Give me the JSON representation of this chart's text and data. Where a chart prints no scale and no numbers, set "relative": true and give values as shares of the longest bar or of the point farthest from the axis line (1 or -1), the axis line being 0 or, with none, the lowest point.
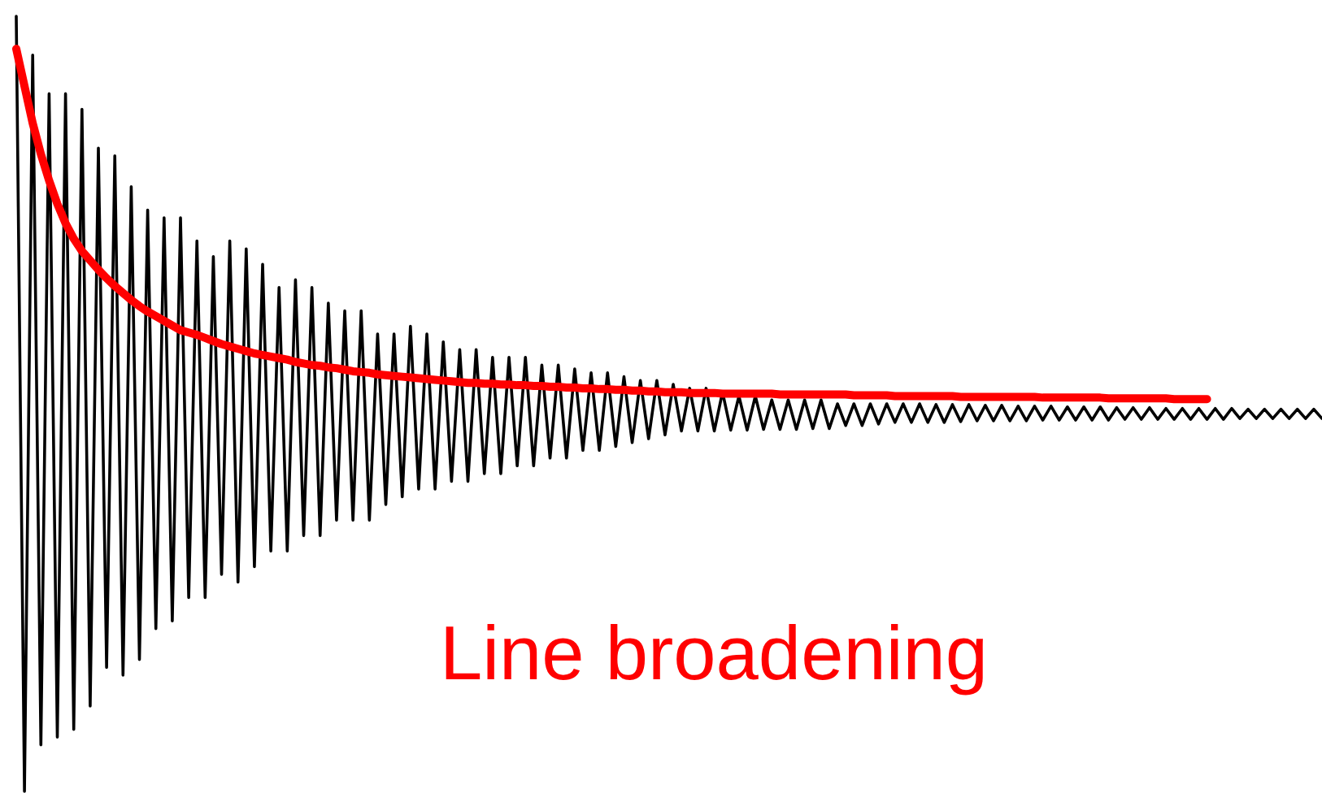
{
  "chart_data": {
    "type": "line",
    "relative": true,
    "categories": [
      null,
      null,
      null,
      null,
      null,
      null,
      null,
      null,
      null,
      null,
      null,
      null,
      null,
      null,
      null,
      null,
      null,
      null,
      null,
      null,
      null,
      null,
      null,
      null,
      null,
      null,
      null,
      null,
      null,
      null,
      null,
      null,
      null,
      null,
      null,
      null,
      null,
      null,
      null,
      null,
      null,
      null,
      null,
      null,
      null,
      null,
      null,
      null,
      null,
      null,
      null,
      null,
      null,
      null,
      null,
      null,
      null,
      null,
      null,
      null,
      null,
      null,
      null,
      null,
      null,
      null,
      null,
      null,
      null,
      null,
      null,
      null,
      null,
      null,
      null,
      null,
      null,
      null,
      null,
      null,
      null,
      null,
      null,
      null,
      null,
      null,
      null,
      null,
      null,
      null,
      null,
      null,
      null,
      null,
      null,
      null,
      null,
      null,
      null,
      null,
      null,
      null,
      null,
      null,
      null,
      null,
      null,
      null,
      null,
      null,
      null,
      null,
      null,
      null,
      null,
      null,
      null,
      null,
      null,
      null,
      null,
      null,
      null,
      null,
      null,
      null,
      null,
      null,
      null,
      null,
      null,
      null,
      null,
      null,
      null,
      null,
      null,
      null,
      null,
      null,
      null,
      null,
      null,
      null,
      null,
      null,
      null,
      null,
      null,
      null,
      null,
      null,
      null,
      null,
      null,
      null,
      null,
      null,
      null,
      null
    ],
    "series": [
      {
        "color": "#000000",
        "values": [
          1,
          0,
          0.95,
          0.06,
          0.9,
          0.07,
          0.9,
          0.08,
          0.88,
          0.11,
          0.83,
          0.16,
          0.82,
          0.15,
          0.78,
          0.17,
          0.75,
          0.21,
          0.74,
          0.22,
          0.74,
          0.25,
          0.71,
          0.25,
          0.69,
          0.28,
          0.71,
          0.27,
          0.7,
          0.29,
          0.68,
          0.31,
          0.65,
          0.31,
          0.66,
          0.33,
          0.65,
          0.33,
          0.63,
          0.35,
          0.62,
          0.35,
          0.62,
          0.35,
          0.59,
          0.37,
          0.59,
          0.38,
          0.6,
          0.39,
          0.59,
          0.39,
          0.58,
          0.4,
          0.57,
          0.4,
          0.57,
          0.41,
          0.56,
          0.41,
          0.56,
          0.42,
          0.56,
          0.42,
          0.55,
          0.43,
          0.55,
          0.43,
          0.545,
          0.44,
          0.54,
          0.44,
          0.54,
          0.445,
          0.535,
          0.45,
          0.53,
          0.455,
          0.53,
          0.46,
          0.525,
          0.465,
          0.52,
          0.465,
          0.52,
          0.465,
          0.515,
          0.466,
          0.51,
          0.466,
          0.51,
          0.467,
          0.505,
          0.467,
          0.505,
          0.467,
          0.505,
          0.468,
          0.505,
          0.468,
          0.5,
          0.472,
          0.5,
          0.472,
          0.5,
          0.474,
          0.5,
          0.476,
          0.5,
          0.476,
          0.5,
          0.476,
          0.499,
          0.476,
          0.499,
          0.477,
          0.499,
          0.478,
          0.498,
          0.478,
          0.498,
          0.478,
          0.497,
          0.478,
          0.497,
          0.479,
          0.497,
          0.479,
          0.496,
          0.479,
          0.496,
          0.479,
          0.496,
          0.479,
          0.495,
          0.48,
          0.495,
          0.48,
          0.495,
          0.48,
          0.494,
          0.48,
          0.494,
          0.48,
          0.494,
          0.48,
          0.494,
          0.48,
          0.494,
          0.481,
          0.493,
          0.481,
          0.493,
          0.481,
          0.493,
          0.481,
          0.493,
          0.481,
          0.493,
          0.481
        ]
      },
      {
        "name": "Line broadening",
        "color": "#ff0000",
        "values": [
          0.958,
          0.91,
          0.862,
          0.822,
          0.788,
          0.758,
          0.733,
          0.713,
          0.697,
          0.685,
          0.673,
          0.662,
          0.652,
          0.643,
          0.634,
          0.626,
          0.619,
          0.613,
          0.607,
          0.601,
          0.595,
          0.592,
          0.589,
          0.585,
          0.581,
          0.577,
          0.574,
          0.571,
          0.568,
          0.565,
          0.563,
          0.561,
          0.559,
          0.557,
          0.554,
          0.552,
          0.55,
          0.549,
          0.547,
          0.546,
          0.544,
          0.542,
          0.541,
          0.54,
          0.538,
          0.537,
          0.536,
          0.535,
          0.534,
          0.533,
          0.532,
          0.531,
          0.53,
          0.529,
          0.528,
          0.527,
          0.527,
          0.526,
          0.526,
          0.525,
          0.525,
          0.524,
          0.524,
          0.523,
          0.523,
          0.522,
          0.522,
          0.521,
          0.521,
          0.52,
          0.52,
          0.519,
          0.519,
          0.518,
          0.518,
          0.517,
          0.517,
          0.516,
          0.516,
          0.515,
          0.515,
          0.515,
          0.514,
          0.514,
          0.514,
          0.514,
          0.513,
          0.513,
          0.513,
          0.513,
          0.513,
          0.513,
          0.513,
          0.512,
          0.512,
          0.512,
          0.512,
          0.512,
          0.512,
          0.512,
          0.512,
          0.512,
          0.511,
          0.511,
          0.511,
          0.511,
          0.511,
          0.51,
          0.51,
          0.51,
          0.51,
          0.51,
          0.51,
          0.51,
          0.51,
          0.509,
          0.509,
          0.509,
          0.509,
          0.509,
          0.509,
          0.509,
          0.509,
          0.509,
          0.509,
          0.508,
          0.508,
          0.508,
          0.508,
          0.508,
          0.508,
          0.508,
          0.508,
          0.507,
          0.507,
          0.507,
          0.507,
          0.507,
          0.507,
          0.507,
          0.507,
          0.506,
          0.506,
          0.506,
          0.506,
          0.506,
          null,
          null,
          null,
          null,
          null,
          null,
          null,
          null,
          null,
          null,
          null,
          null,
          null,
          null
        ]
      }
    ]
  }
}
